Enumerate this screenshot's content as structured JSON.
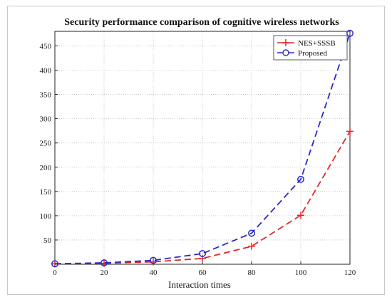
{
  "chart_data": {
    "type": "line",
    "title": "Security performance comparison of cognitive wireless networks",
    "xlabel": "Interaction times",
    "ylabel": "",
    "x": [
      0,
      20,
      40,
      60,
      80,
      100,
      120
    ],
    "xlim": [
      0,
      120
    ],
    "ylim": [
      0,
      480
    ],
    "xticks": [
      0,
      20,
      40,
      60,
      80,
      100,
      120
    ],
    "yticks": [
      50,
      100,
      150,
      200,
      250,
      300,
      350,
      400,
      450
    ],
    "grid": true,
    "legend_position": "top-right",
    "series": [
      {
        "name": "NES+SSSB",
        "values": [
          1,
          2,
          5,
          12,
          37,
          101,
          274
        ],
        "color": "#e8262a",
        "marker": "plus",
        "line_style": "dashed"
      },
      {
        "name": "Proposed",
        "values": [
          1,
          3,
          8,
          22,
          64,
          175,
          476
        ],
        "color": "#2a2ac8",
        "marker": "circle",
        "line_style": "dashed"
      }
    ]
  }
}
